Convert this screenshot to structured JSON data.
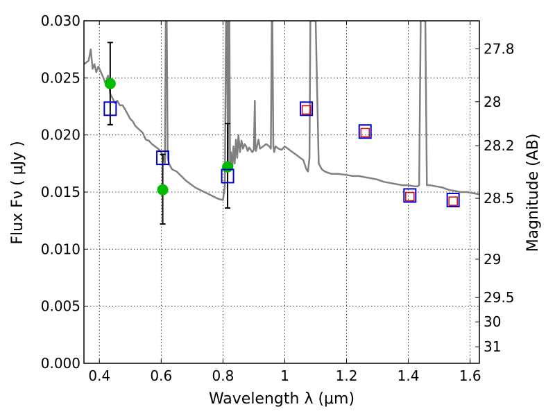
{
  "chart_data": {
    "type": "scatter",
    "xlabel": "Wavelength  λ (μm)",
    "ylabel": "Flux  Fν  ( μJy )",
    "ylabel_right": "Magnitude (AB)",
    "xlim": [
      0.35,
      1.63
    ],
    "ylim": [
      0.0,
      0.03
    ],
    "grid": true,
    "x_ticks": [
      {
        "value": 0.4,
        "label": "0.4"
      },
      {
        "value": 0.6,
        "label": "0.6"
      },
      {
        "value": 0.8,
        "label": "0.8"
      },
      {
        "value": 1.0,
        "label": "1"
      },
      {
        "value": 1.2,
        "label": "1.2"
      },
      {
        "value": 1.4,
        "label": "1.4"
      },
      {
        "value": 1.6,
        "label": "1.6"
      }
    ],
    "y_ticks": [
      {
        "value": 0.0,
        "label": "0.000"
      },
      {
        "value": 0.005,
        "label": "0.005"
      },
      {
        "value": 0.01,
        "label": "0.010"
      },
      {
        "value": 0.015,
        "label": "0.015"
      },
      {
        "value": 0.02,
        "label": "0.020"
      },
      {
        "value": 0.025,
        "label": "0.025"
      },
      {
        "value": 0.03,
        "label": "0.030"
      }
    ],
    "right_ticks": [
      {
        "value": 27.8,
        "label": "27.8"
      },
      {
        "value": 28.0,
        "label": "28"
      },
      {
        "value": 28.2,
        "label": "28.2"
      },
      {
        "value": 28.5,
        "label": "28.5"
      },
      {
        "value": 29.0,
        "label": "29"
      },
      {
        "value": 29.5,
        "label": "29.5"
      },
      {
        "value": 30.0,
        "label": "30"
      },
      {
        "value": 31.0,
        "label": "31"
      }
    ],
    "series": [
      {
        "style": "line",
        "color": "#808080",
        "x": [
          0.35,
          0.365,
          0.372,
          0.378,
          0.384,
          0.39,
          0.397,
          0.405,
          0.413,
          0.42,
          0.428,
          0.435,
          0.443,
          0.45,
          0.458,
          0.466,
          0.475,
          0.484,
          0.492,
          0.5,
          0.508,
          0.516,
          0.524,
          0.532,
          0.54,
          0.55,
          0.56,
          0.57,
          0.58,
          0.59,
          0.6,
          0.607,
          0.612,
          0.615,
          0.618,
          0.621,
          0.625,
          0.635,
          0.65,
          0.665,
          0.68,
          0.695,
          0.71,
          0.725,
          0.74,
          0.755,
          0.77,
          0.785,
          0.8,
          0.806,
          0.81,
          0.813,
          0.816,
          0.818,
          0.821,
          0.823,
          0.826,
          0.83,
          0.834,
          0.838,
          0.842,
          0.846,
          0.85,
          0.855,
          0.86,
          0.865,
          0.87,
          0.875,
          0.88,
          0.885,
          0.89,
          0.895,
          0.9,
          0.903,
          0.905,
          0.907,
          0.91,
          0.915,
          0.92,
          0.93,
          0.94,
          0.95,
          0.955,
          0.958,
          0.96,
          0.963,
          0.966,
          0.97,
          0.98,
          0.99,
          1.0,
          1.01,
          1.02,
          1.03,
          1.04,
          1.05,
          1.06,
          1.07,
          1.075,
          1.08,
          1.083,
          1.086,
          1.09,
          1.1,
          1.11,
          1.12,
          1.13,
          1.15,
          1.17,
          1.2,
          1.22,
          1.24,
          1.26,
          1.28,
          1.3,
          1.32,
          1.34,
          1.36,
          1.38,
          1.4,
          1.42,
          1.43,
          1.435,
          1.44,
          1.445,
          1.45,
          1.455,
          1.46,
          1.47,
          1.49,
          1.51,
          1.53,
          1.55,
          1.57,
          1.59,
          1.61,
          1.63
        ],
        "y": [
          0.0262,
          0.0265,
          0.0275,
          0.0258,
          0.0262,
          0.0255,
          0.026,
          0.0255,
          0.025,
          0.0245,
          0.0252,
          0.0236,
          0.0232,
          0.0228,
          0.023,
          0.0226,
          0.0226,
          0.0222,
          0.0218,
          0.0214,
          0.0212,
          0.0208,
          0.0206,
          0.0204,
          0.0202,
          0.0196,
          0.0195,
          0.0192,
          0.019,
          0.0188,
          0.0185,
          0.0181,
          0.0175,
          0.03,
          0.03,
          0.018,
          0.0175,
          0.017,
          0.0168,
          0.0164,
          0.016,
          0.0157,
          0.0154,
          0.0152,
          0.015,
          0.0148,
          0.0146,
          0.0144,
          0.0143,
          0.0155,
          0.03,
          0.03,
          0.017,
          0.03,
          0.03,
          0.017,
          0.0185,
          0.017,
          0.019,
          0.0175,
          0.0196,
          0.018,
          0.02,
          0.0185,
          0.0195,
          0.0188,
          0.0192,
          0.019,
          0.0186,
          0.0189,
          0.0187,
          0.0185,
          0.0187,
          0.023,
          0.019,
          0.0186,
          0.019,
          0.0196,
          0.0188,
          0.019,
          0.0192,
          0.019,
          0.0188,
          0.03,
          0.03,
          0.019,
          0.0185,
          0.019,
          0.0188,
          0.0187,
          0.019,
          0.0188,
          0.0186,
          0.0184,
          0.0182,
          0.018,
          0.0178,
          0.017,
          0.0168,
          0.018,
          0.03,
          0.03,
          0.03,
          0.03,
          0.0175,
          0.017,
          0.0168,
          0.0166,
          0.0166,
          0.0165,
          0.0164,
          0.0164,
          0.0163,
          0.0162,
          0.0161,
          0.0159,
          0.0158,
          0.0157,
          0.0156,
          0.0156,
          0.0155,
          0.0155,
          0.0156,
          0.03,
          0.03,
          0.03,
          0.03,
          0.0156,
          0.0156,
          0.0155,
          0.0154,
          0.0152,
          0.0151,
          0.015,
          0.015,
          0.0149,
          0.0148
        ]
      },
      {
        "style": "points",
        "marker": "circle",
        "color": "#00bb00",
        "x": [
          0.435,
          0.605,
          0.815
        ],
        "y": [
          0.0245,
          0.0152,
          0.0172
        ],
        "yerr_low": [
          0.0209,
          0.0122,
          0.0136
        ],
        "yerr_high": [
          0.0281,
          0.0183,
          0.021
        ]
      },
      {
        "style": "points",
        "marker": "square-open",
        "color": "#0000cc",
        "x": [
          0.435,
          0.605,
          0.815,
          1.07,
          1.26,
          1.405,
          1.545
        ],
        "y": [
          0.0223,
          0.018,
          0.0164,
          0.0223,
          0.0203,
          0.0147,
          0.0143
        ]
      },
      {
        "style": "points",
        "marker": "square-open-small",
        "color": "#dd0000",
        "x": [
          1.07,
          1.26,
          1.405,
          1.545
        ],
        "y": [
          0.0222,
          0.0202,
          0.0146,
          0.0142
        ]
      }
    ]
  }
}
